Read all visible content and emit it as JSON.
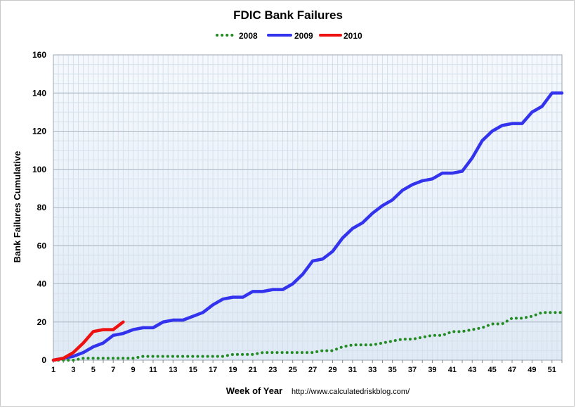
{
  "chart_data": {
    "type": "line",
    "title": "FDIC Bank Failures",
    "xlabel": "Week of Year",
    "ylabel": "Bank Failures Cumulative",
    "source": "http://www.calculatedriskblog.com/",
    "xlim": [
      1,
      52
    ],
    "ylim": [
      0,
      160
    ],
    "y_ticks": [
      0,
      20,
      40,
      60,
      80,
      100,
      120,
      140,
      160
    ],
    "x_ticks": [
      1,
      3,
      5,
      7,
      9,
      11,
      13,
      15,
      17,
      19,
      21,
      23,
      25,
      27,
      29,
      31,
      33,
      35,
      37,
      39,
      41,
      43,
      45,
      47,
      49,
      51
    ],
    "grid": true,
    "legend_position": "top-center",
    "series": [
      {
        "name": "2008",
        "color": "#228B22",
        "style": "dotted",
        "x": [
          1,
          2,
          3,
          4,
          5,
          6,
          7,
          8,
          9,
          10,
          11,
          12,
          13,
          14,
          15,
          16,
          17,
          18,
          19,
          20,
          21,
          22,
          23,
          24,
          25,
          26,
          27,
          28,
          29,
          30,
          31,
          32,
          33,
          34,
          35,
          36,
          37,
          38,
          39,
          40,
          41,
          42,
          43,
          44,
          45,
          46,
          47,
          48,
          49,
          50,
          51,
          52
        ],
        "values": [
          0,
          0,
          0,
          1,
          1,
          1,
          1,
          1,
          1,
          2,
          2,
          2,
          2,
          2,
          2,
          2,
          2,
          2,
          3,
          3,
          3,
          4,
          4,
          4,
          4,
          4,
          4,
          5,
          5,
          7,
          8,
          8,
          8,
          9,
          10,
          11,
          11,
          12,
          13,
          13,
          15,
          15,
          16,
          17,
          19,
          19,
          22,
          22,
          23,
          25,
          25,
          25
        ]
      },
      {
        "name": "2009",
        "color": "#3333EE",
        "style": "solid",
        "x": [
          1,
          2,
          3,
          4,
          5,
          6,
          7,
          8,
          9,
          10,
          11,
          12,
          13,
          14,
          15,
          16,
          17,
          18,
          19,
          20,
          21,
          22,
          23,
          24,
          25,
          26,
          27,
          28,
          29,
          30,
          31,
          32,
          33,
          34,
          35,
          36,
          37,
          38,
          39,
          40,
          41,
          42,
          43,
          44,
          45,
          46,
          47,
          48,
          49,
          50,
          51,
          52
        ],
        "values": [
          0,
          1,
          2,
          4,
          7,
          9,
          13,
          14,
          16,
          17,
          17,
          20,
          21,
          21,
          23,
          25,
          29,
          32,
          33,
          33,
          36,
          36,
          37,
          37,
          40,
          45,
          52,
          53,
          57,
          64,
          69,
          72,
          77,
          81,
          84,
          89,
          92,
          94,
          95,
          98,
          98,
          99,
          106,
          115,
          120,
          123,
          124,
          124,
          130,
          133,
          140,
          140
        ]
      },
      {
        "name": "2010",
        "color": "#EE1111",
        "style": "solid",
        "x": [
          1,
          2,
          3,
          4,
          5,
          6,
          7,
          8
        ],
        "values": [
          0,
          1,
          4,
          9,
          15,
          16,
          16,
          20
        ]
      }
    ]
  }
}
